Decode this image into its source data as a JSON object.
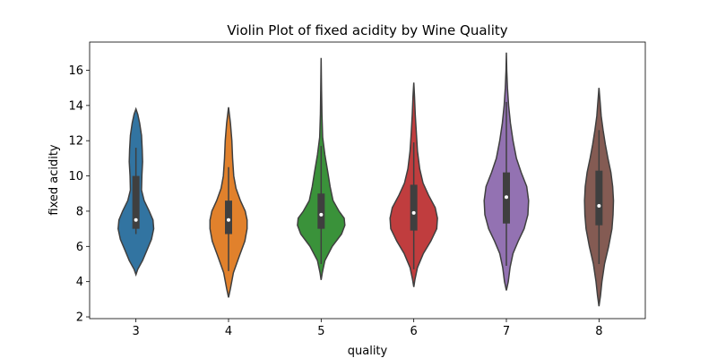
{
  "chart_data": {
    "type": "violin",
    "title": "Violin Plot of fixed acidity by Wine Quality",
    "xlabel": "quality",
    "ylabel": "fixed acidity",
    "categories": [
      "3",
      "4",
      "5",
      "6",
      "7",
      "8"
    ],
    "y_ticks": [
      "2",
      "4",
      "6",
      "8",
      "10",
      "12",
      "14",
      "16"
    ],
    "ylim": [
      1.9,
      17.6
    ],
    "grid": false,
    "colors": [
      "#3274a1",
      "#e1812c",
      "#3a923a",
      "#c03d3e",
      "#9372b2",
      "#845b53"
    ],
    "violins": [
      {
        "category": "3",
        "min": 4.4,
        "max": 13.8,
        "q1": 7.0,
        "median": 7.5,
        "q3": 10.0,
        "whisker_low": 6.7,
        "whisker_high": 11.6,
        "profile": [
          [
            4.4,
            0.0
          ],
          [
            4.7,
            0.05
          ],
          [
            5.2,
            0.18
          ],
          [
            5.8,
            0.3
          ],
          [
            6.4,
            0.42
          ],
          [
            7.0,
            0.48
          ],
          [
            7.5,
            0.46
          ],
          [
            8.0,
            0.36
          ],
          [
            8.6,
            0.22
          ],
          [
            9.2,
            0.15
          ],
          [
            10.0,
            0.16
          ],
          [
            10.8,
            0.18
          ],
          [
            11.5,
            0.17
          ],
          [
            12.3,
            0.15
          ],
          [
            13.0,
            0.1
          ],
          [
            13.5,
            0.05
          ],
          [
            13.8,
            0.0
          ]
        ]
      },
      {
        "category": "4",
        "min": 3.1,
        "max": 13.9,
        "q1": 6.7,
        "median": 7.5,
        "q3": 8.6,
        "whisker_low": 4.6,
        "whisker_high": 10.5,
        "profile": [
          [
            3.1,
            0.0
          ],
          [
            3.6,
            0.05
          ],
          [
            4.5,
            0.13
          ],
          [
            5.5,
            0.3
          ],
          [
            6.3,
            0.44
          ],
          [
            7.0,
            0.5
          ],
          [
            7.5,
            0.5
          ],
          [
            8.0,
            0.45
          ],
          [
            8.6,
            0.32
          ],
          [
            9.3,
            0.2
          ],
          [
            10.0,
            0.14
          ],
          [
            11.0,
            0.11
          ],
          [
            12.0,
            0.09
          ],
          [
            13.0,
            0.05
          ],
          [
            13.9,
            0.0
          ]
        ]
      },
      {
        "category": "5",
        "min": 4.1,
        "max": 16.7,
        "q1": 7.0,
        "median": 7.8,
        "q3": 9.0,
        "whisker_low": 5.0,
        "whisker_high": 11.7,
        "profile": [
          [
            4.1,
            0.0
          ],
          [
            4.5,
            0.03
          ],
          [
            5.2,
            0.1
          ],
          [
            6.0,
            0.3
          ],
          [
            6.7,
            0.55
          ],
          [
            7.2,
            0.64
          ],
          [
            7.6,
            0.62
          ],
          [
            8.0,
            0.48
          ],
          [
            8.6,
            0.32
          ],
          [
            9.4,
            0.24
          ],
          [
            10.2,
            0.18
          ],
          [
            11.2,
            0.1
          ],
          [
            12.2,
            0.04
          ],
          [
            13.5,
            0.02
          ],
          [
            15.0,
            0.01
          ],
          [
            16.7,
            0.0
          ]
        ]
      },
      {
        "category": "6",
        "min": 3.7,
        "max": 15.3,
        "q1": 6.9,
        "median": 7.9,
        "q3": 9.5,
        "whisker_low": 4.7,
        "whisker_high": 11.9,
        "profile": [
          [
            3.7,
            0.0
          ],
          [
            4.1,
            0.03
          ],
          [
            4.8,
            0.1
          ],
          [
            5.6,
            0.26
          ],
          [
            6.3,
            0.46
          ],
          [
            7.0,
            0.62
          ],
          [
            7.6,
            0.64
          ],
          [
            8.2,
            0.58
          ],
          [
            8.9,
            0.4
          ],
          [
            9.6,
            0.25
          ],
          [
            10.4,
            0.16
          ],
          [
            11.4,
            0.1
          ],
          [
            12.4,
            0.07
          ],
          [
            13.5,
            0.04
          ],
          [
            14.5,
            0.02
          ],
          [
            15.3,
            0.0
          ]
        ]
      },
      {
        "category": "7",
        "min": 3.5,
        "max": 17.0,
        "q1": 7.3,
        "median": 8.8,
        "q3": 10.2,
        "whisker_low": 4.9,
        "whisker_high": 14.2,
        "profile": [
          [
            3.5,
            0.0
          ],
          [
            4.0,
            0.05
          ],
          [
            4.8,
            0.1
          ],
          [
            5.6,
            0.18
          ],
          [
            6.3,
            0.32
          ],
          [
            7.0,
            0.48
          ],
          [
            7.8,
            0.58
          ],
          [
            8.6,
            0.6
          ],
          [
            9.4,
            0.55
          ],
          [
            10.2,
            0.4
          ],
          [
            11.0,
            0.27
          ],
          [
            12.0,
            0.18
          ],
          [
            13.0,
            0.11
          ],
          [
            14.0,
            0.06
          ],
          [
            15.0,
            0.03
          ],
          [
            16.0,
            0.01
          ],
          [
            17.0,
            0.0
          ]
        ]
      },
      {
        "category": "8",
        "min": 2.6,
        "max": 15.0,
        "q1": 7.2,
        "median": 8.3,
        "q3": 10.3,
        "whisker_low": 5.0,
        "whisker_high": 12.6,
        "profile": [
          [
            2.6,
            0.0
          ],
          [
            3.2,
            0.04
          ],
          [
            4.0,
            0.08
          ],
          [
            5.0,
            0.15
          ],
          [
            6.0,
            0.26
          ],
          [
            7.0,
            0.35
          ],
          [
            7.8,
            0.38
          ],
          [
            8.6,
            0.39
          ],
          [
            9.4,
            0.37
          ],
          [
            10.2,
            0.32
          ],
          [
            11.0,
            0.24
          ],
          [
            11.8,
            0.17
          ],
          [
            12.6,
            0.11
          ],
          [
            13.4,
            0.06
          ],
          [
            14.2,
            0.03
          ],
          [
            15.0,
            0.0
          ]
        ]
      }
    ]
  }
}
